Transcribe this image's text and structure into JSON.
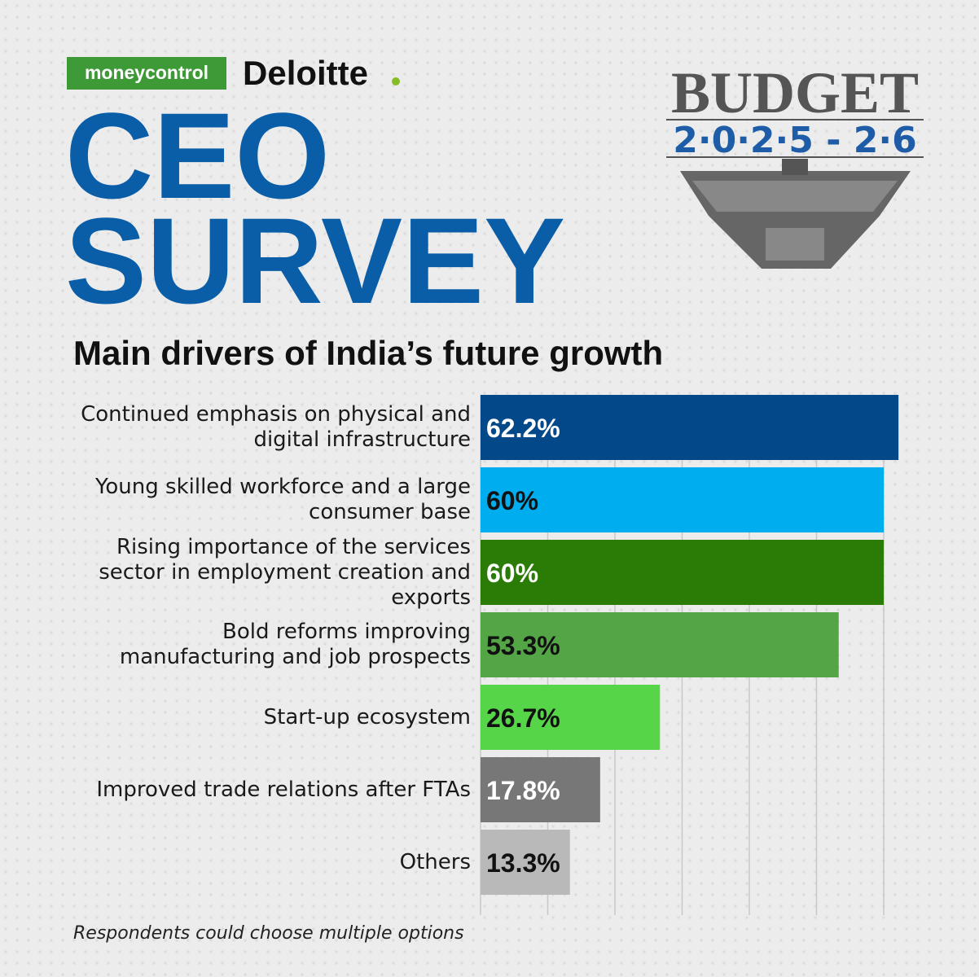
{
  "header": {
    "brand_left": "moneycontrol",
    "brand_right": "Deloitte",
    "headline": [
      "CEO",
      "SURVEY"
    ],
    "badge_title": "BUDGET",
    "badge_years": "2·0·2·5 - 2·6"
  },
  "chart_data": {
    "type": "hbar",
    "title": "Main drivers of India’s future growth",
    "categories": [
      "Continued emphasis on physical and digital infrastructure",
      "Young skilled workforce and a large consumer base",
      "Rising importance of the services sector in employment creation and exports",
      "Bold reforms improving manufacturing and job prospects",
      "Start-up ecosystem",
      "Improved trade relations after FTAs",
      "Others"
    ],
    "values": [
      62.2,
      60,
      60,
      53.3,
      26.7,
      17.8,
      13.3
    ],
    "value_labels": [
      "62.2%",
      "60%",
      "60%",
      "53.3%",
      "26.7%",
      "17.8%",
      "13.3%"
    ],
    "colors": [
      "#03498a",
      "#00adee",
      "#2b7c07",
      "#53a545",
      "#57d549",
      "#777777",
      "#b9b9b9"
    ],
    "value_label_colors": [
      "#ffffff",
      "#111111",
      "#ffffff",
      "#111111",
      "#111111",
      "#ffffff",
      "#111111"
    ],
    "xlim": [
      0,
      70
    ],
    "xticks": [
      0,
      10,
      20,
      30,
      40,
      50,
      60
    ],
    "grid": true,
    "note": "Respondents could choose multiple options"
  }
}
